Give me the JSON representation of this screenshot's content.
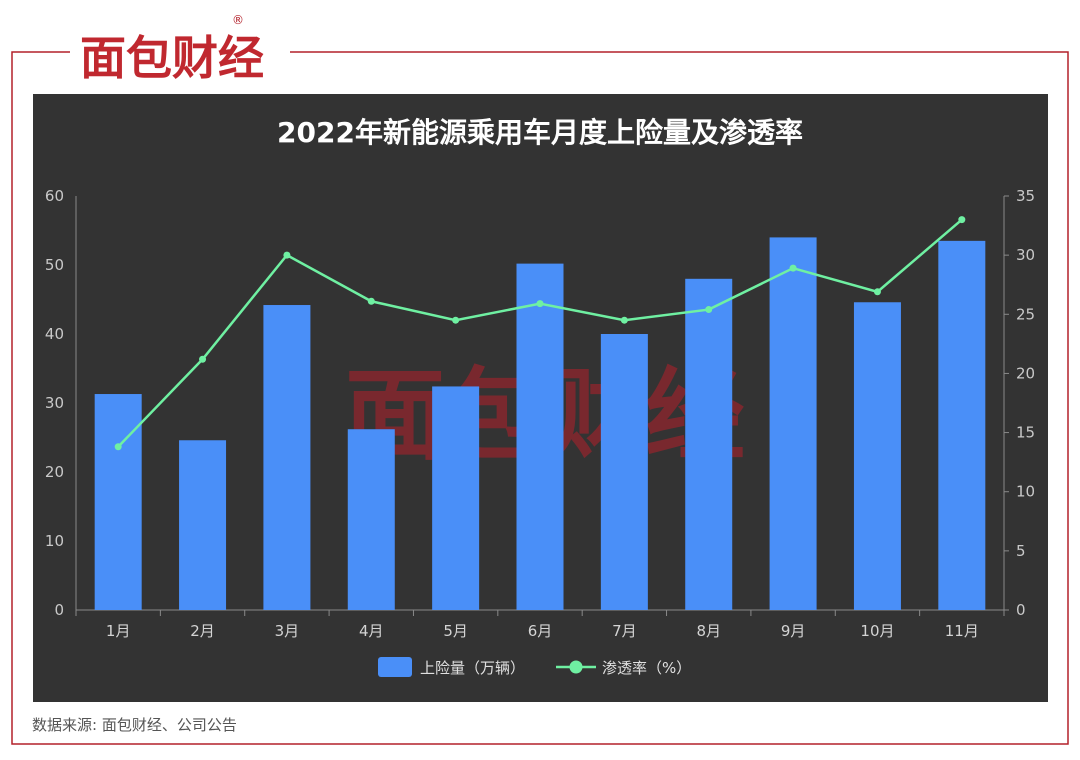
{
  "brand": {
    "name": "面包财经",
    "registered": "®"
  },
  "source_note": "数据来源: 面包财经、公司公告",
  "colors": {
    "bar": "#4a8ff8",
    "line": "#6ff0a2",
    "panel": "#333333",
    "frame_red": "#b3202a",
    "brand_red": "#c0282f"
  },
  "chart_data": {
    "type": "bar",
    "title": "2022年新能源乘用车月度上险量及渗透率",
    "categories": [
      "1月",
      "2月",
      "3月",
      "4月",
      "5月",
      "6月",
      "7月",
      "8月",
      "9月",
      "10月",
      "11月"
    ],
    "series": [
      {
        "name": "上险量（万辆）",
        "type": "bar",
        "axis": "left",
        "values": [
          31.3,
          24.6,
          44.2,
          26.2,
          32.4,
          50.2,
          40.0,
          48.0,
          54.0,
          44.6,
          53.5
        ]
      },
      {
        "name": "渗透率（%）",
        "type": "line",
        "axis": "right",
        "values": [
          13.8,
          21.2,
          30.0,
          26.1,
          24.5,
          25.9,
          24.5,
          25.4,
          28.9,
          26.9,
          33.0
        ]
      }
    ],
    "y_left": {
      "min": 0,
      "max": 60,
      "ticks": [
        "0",
        "10",
        "20",
        "30",
        "40",
        "50",
        "60"
      ]
    },
    "y_right": {
      "min": 0,
      "max": 35,
      "ticks": [
        "0",
        "5",
        "10",
        "15",
        "20",
        "25",
        "30",
        "35"
      ]
    },
    "legend": {
      "placement": "bottom-center"
    },
    "grid": false
  }
}
